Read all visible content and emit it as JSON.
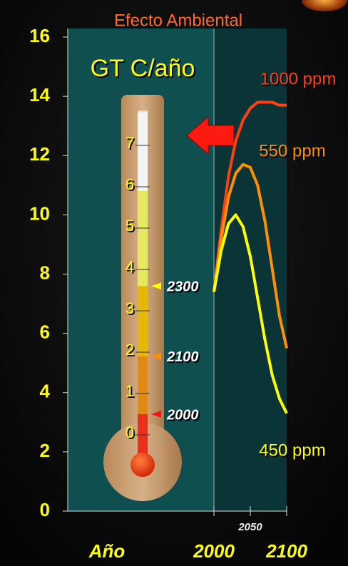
{
  "chart_data": {
    "type": "line",
    "title": "Efecto Ambiental",
    "y_label": "GT C/año",
    "x_label": "Año",
    "x": [
      2000,
      2010,
      2020,
      2030,
      2040,
      2050,
      2060,
      2070,
      2080,
      2090,
      2100
    ],
    "xlim": [
      2000,
      2100
    ],
    "xticks": [
      2000,
      2050,
      2100
    ],
    "ylim": [
      0,
      16
    ],
    "yticks": [
      0,
      2,
      4,
      6,
      8,
      10,
      12,
      14,
      16
    ],
    "series": [
      {
        "name": "1000 ppm",
        "color": "#ff4010",
        "values": [
          7.4,
          9.5,
          11.3,
          12.5,
          13.2,
          13.6,
          13.8,
          13.8,
          13.8,
          13.7,
          13.7
        ]
      },
      {
        "name": "550 ppm",
        "color": "#ff9000",
        "values": [
          7.4,
          9.2,
          10.6,
          11.4,
          11.7,
          11.6,
          11.0,
          9.8,
          8.2,
          6.6,
          5.5
        ]
      },
      {
        "name": "450 ppm",
        "color": "#ffff00",
        "values": [
          7.4,
          8.8,
          9.7,
          10.0,
          9.6,
          8.6,
          7.2,
          5.8,
          4.6,
          3.8,
          3.3
        ]
      }
    ],
    "thermometer": {
      "ticks": [
        0,
        1,
        2,
        3,
        4,
        5,
        6,
        7
      ],
      "bands": [
        {
          "to": 0.5,
          "color": "#e8301a"
        },
        {
          "to": 1.9,
          "color": "#e08a10"
        },
        {
          "to": 3.6,
          "color": "#e6b800"
        },
        {
          "to": 5.9,
          "color": "#e8e860"
        },
        {
          "to": 7.8,
          "color": "#f4f4f4"
        }
      ],
      "markers": [
        {
          "value": 3.6,
          "label": "2300",
          "color": "#ffff00"
        },
        {
          "value": 1.9,
          "label": "2100",
          "color": "#ff9000"
        },
        {
          "value": 0.5,
          "label": "2000",
          "color": "#ff1010"
        }
      ]
    }
  }
}
